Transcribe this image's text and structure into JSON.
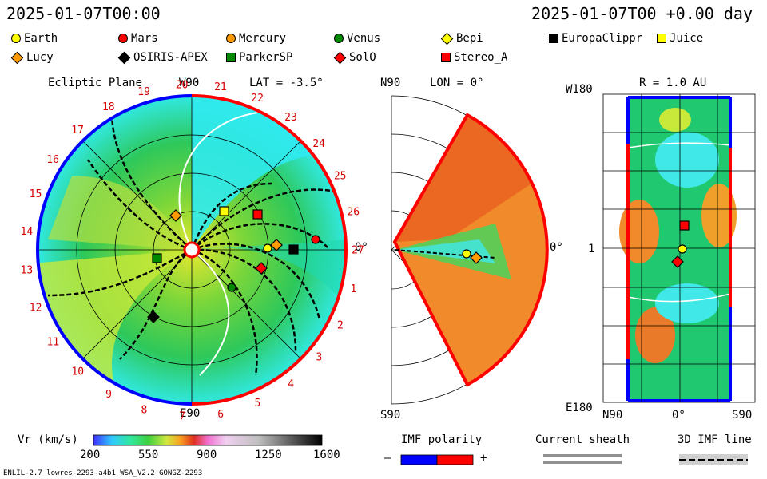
{
  "header": {
    "date_left": "2025-01-07T00:00",
    "date_right": "2025-01-07T00 +0.00 day"
  },
  "legend": [
    {
      "label": "Earth",
      "shape": "circle",
      "color": "#ffff00"
    },
    {
      "label": "Mars",
      "shape": "circle",
      "color": "#ff0000"
    },
    {
      "label": "Mercury",
      "shape": "circle",
      "color": "#ff9900"
    },
    {
      "label": "Venus",
      "shape": "circle",
      "color": "#008800"
    },
    {
      "label": "Bepi",
      "shape": "diamond",
      "color": "#ffff00"
    },
    {
      "label": "EuropaClippr",
      "shape": "square",
      "color": "#000000"
    },
    {
      "label": "Juice",
      "shape": "square",
      "color": "#ffff00"
    },
    {
      "label": "Lucy",
      "shape": "diamond",
      "color": "#ff9900"
    },
    {
      "label": "OSIRIS-APEX",
      "shape": "diamond",
      "color": "#000000"
    },
    {
      "label": "ParkerSP",
      "shape": "square",
      "color": "#008800"
    },
    {
      "label": "SolO",
      "shape": "diamond",
      "color": "#ff0000"
    },
    {
      "label": "Stereo_A",
      "shape": "square",
      "color": "#ff0000"
    }
  ],
  "ecliptic": {
    "title": "Ecliptic Plane",
    "top_label": "W90",
    "lat_label": "LAT = -3.5°",
    "bottom_label": "E90",
    "right_label": "0°",
    "carrington": [
      "1",
      "2",
      "3",
      "4",
      "5",
      "6",
      "7",
      "8",
      "9",
      "10",
      "11",
      "12",
      "13",
      "14",
      "15",
      "16",
      "17",
      "18",
      "19",
      "20",
      "21",
      "22",
      "23",
      "24",
      "25",
      "26",
      "27"
    ]
  },
  "meridional": {
    "top_label": "N90",
    "lon_label": "LON = 0°",
    "bottom_label": "S90",
    "right_label": "0°"
  },
  "map": {
    "title": "R = 1.0 AU",
    "top_left": "W180",
    "mid_left": "1",
    "bottom_left": "E180",
    "x_left": "N90",
    "x_mid": "0°",
    "x_right": "S90"
  },
  "colorbar": {
    "label": "Vr (km/s)",
    "ticks": [
      "200",
      "550",
      "900",
      "1250",
      "1600"
    ]
  },
  "imf": {
    "label": "IMF polarity",
    "minus": "–",
    "plus": "+"
  },
  "sheath": {
    "label": "Current sheath"
  },
  "imf3d": {
    "label": "3D IMF line"
  },
  "footer": {
    "left": "ENLIL-2.7 lowres-2293-a4b1 WSA_V2.2 GONGZ-2293"
  },
  "colors": {
    "blue": "#0000ff",
    "red": "#ff0000",
    "cyan": "#33ffff",
    "green": "#22cc33"
  }
}
